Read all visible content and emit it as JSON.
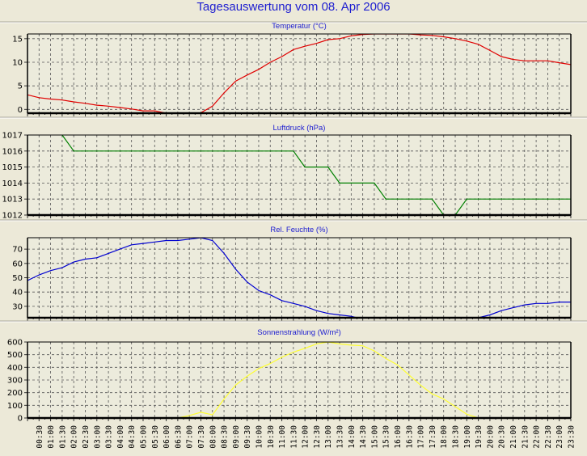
{
  "title": "Tagesauswertung vom 08. Apr 2006",
  "x_tick_labels": [
    "00:30",
    "01:00",
    "01:30",
    "02:00",
    "02:30",
    "03:00",
    "03:30",
    "04:00",
    "04:30",
    "05:00",
    "05:30",
    "06:00",
    "06:30",
    "07:00",
    "07:30",
    "08:00",
    "08:30",
    "09:00",
    "09:30",
    "10:00",
    "10:30",
    "11:00",
    "11:30",
    "12:00",
    "12:30",
    "13:00",
    "13:30",
    "14:00",
    "14:30",
    "15:00",
    "15:30",
    "16:00",
    "16:30",
    "17:00",
    "17:30",
    "18:00",
    "18:30",
    "19:00",
    "19:30",
    "20:00",
    "20:30",
    "21:00",
    "21:30",
    "22:00",
    "22:30",
    "23:00",
    "23:30"
  ],
  "chart_data": [
    {
      "type": "line",
      "title": "Temperatur (°C)",
      "color": "#e00000",
      "x": [
        "00:00",
        "00:30",
        "01:00",
        "01:30",
        "02:00",
        "02:30",
        "03:00",
        "03:30",
        "04:00",
        "04:30",
        "05:00",
        "05:30",
        "06:00",
        "06:30",
        "07:00",
        "07:30",
        "08:00",
        "08:30",
        "09:00",
        "09:30",
        "10:00",
        "10:30",
        "11:00",
        "11:30",
        "12:00",
        "12:30",
        "13:00",
        "13:30",
        "14:00",
        "14:30",
        "15:00",
        "15:30",
        "16:00",
        "16:30",
        "17:00",
        "17:30",
        "18:00",
        "18:30",
        "19:00",
        "19:30",
        "20:00",
        "20:30",
        "21:00",
        "21:30",
        "22:00",
        "22:30",
        "23:00",
        "23:30"
      ],
      "values": [
        3.1,
        2.5,
        2.2,
        2.0,
        1.6,
        1.3,
        0.9,
        0.7,
        0.4,
        0.1,
        -0.3,
        -0.3,
        -0.8,
        -1.3,
        -1.3,
        -0.7,
        0.7,
        3.5,
        6.0,
        7.3,
        8.5,
        10.0,
        11.2,
        12.7,
        13.4,
        14.0,
        14.8,
        15.0,
        15.6,
        15.9,
        16.0,
        16.0,
        16.0,
        16.0,
        15.8,
        15.7,
        15.4,
        15.0,
        14.5,
        13.8,
        12.5,
        11.2,
        10.6,
        10.3,
        10.3,
        10.3,
        9.9,
        9.5
      ],
      "ylim": [
        -0.8,
        16
      ],
      "yticks": [
        0,
        5,
        10,
        15
      ],
      "grid": true
    },
    {
      "type": "line",
      "title": "Luftdruck (hPa)",
      "color": "#008000",
      "x": [
        "00:00",
        "00:30",
        "01:00",
        "01:30",
        "02:00",
        "02:30",
        "03:00",
        "03:30",
        "04:00",
        "04:30",
        "05:00",
        "05:30",
        "06:00",
        "06:30",
        "07:00",
        "07:30",
        "08:00",
        "08:30",
        "09:00",
        "09:30",
        "10:00",
        "10:30",
        "11:00",
        "11:30",
        "12:00",
        "12:30",
        "13:00",
        "13:30",
        "14:00",
        "14:30",
        "15:00",
        "15:30",
        "16:00",
        "16:30",
        "17:00",
        "17:30",
        "18:00",
        "18:30",
        "19:00",
        "19:30",
        "20:00",
        "20:30",
        "21:00",
        "21:30",
        "22:00",
        "22:30",
        "23:00",
        "23:30"
      ],
      "values": [
        1017.5,
        1017.5,
        1017.5,
        1017,
        1016,
        1016,
        1016,
        1016,
        1016,
        1016,
        1016,
        1016,
        1016,
        1016,
        1016,
        1016,
        1016,
        1016,
        1016,
        1016,
        1016,
        1016,
        1016,
        1016,
        1015,
        1015,
        1015,
        1014,
        1014,
        1014,
        1014,
        1013,
        1013,
        1013,
        1013,
        1013,
        1012,
        1012,
        1013,
        1013,
        1013,
        1013,
        1013,
        1013,
        1013,
        1013,
        1013,
        1013
      ],
      "ylim": [
        1012,
        1017
      ],
      "yticks": [
        1012,
        1013,
        1014,
        1015,
        1016,
        1017
      ],
      "grid": true
    },
    {
      "type": "line",
      "title": "Rel. Feuchte (%)",
      "color": "#0000d0",
      "x": [
        "00:00",
        "00:30",
        "01:00",
        "01:30",
        "02:00",
        "02:30",
        "03:00",
        "03:30",
        "04:00",
        "04:30",
        "05:00",
        "05:30",
        "06:00",
        "06:30",
        "07:00",
        "07:30",
        "08:00",
        "08:30",
        "09:00",
        "09:30",
        "10:00",
        "10:30",
        "11:00",
        "11:30",
        "12:00",
        "12:30",
        "13:00",
        "13:30",
        "14:00",
        "14:30",
        "15:00",
        "15:30",
        "16:00",
        "16:30",
        "17:00",
        "17:30",
        "18:00",
        "18:30",
        "19:00",
        "19:30",
        "20:00",
        "20:30",
        "21:00",
        "21:30",
        "22:00",
        "22:30",
        "23:00",
        "23:30"
      ],
      "values": [
        48,
        52,
        55,
        57,
        61,
        63,
        64,
        67,
        70,
        73,
        74,
        75,
        76,
        76,
        77,
        78,
        76,
        67,
        56,
        47,
        41,
        38,
        34,
        32,
        30,
        27,
        25,
        24,
        23,
        21,
        20,
        20,
        20,
        20,
        20,
        22,
        22,
        21,
        21,
        22,
        24,
        27,
        29,
        31,
        32,
        32,
        33,
        33
      ],
      "ylim": [
        22,
        78
      ],
      "yticks": [
        30,
        40,
        50,
        60,
        70
      ],
      "grid": true
    },
    {
      "type": "line",
      "title": "Sonnenstrahlung (W/m²)",
      "color": "#ffff30",
      "x": [
        "00:00",
        "00:30",
        "01:00",
        "01:30",
        "02:00",
        "02:30",
        "03:00",
        "03:30",
        "04:00",
        "04:30",
        "05:00",
        "05:30",
        "06:00",
        "06:30",
        "07:00",
        "07:30",
        "08:00",
        "08:30",
        "09:00",
        "09:30",
        "10:00",
        "10:30",
        "11:00",
        "11:30",
        "12:00",
        "12:30",
        "13:00",
        "13:30",
        "14:00",
        "14:30",
        "15:00",
        "15:30",
        "16:00",
        "16:30",
        "17:00",
        "17:30",
        "18:00",
        "18:30",
        "19:00",
        "19:30",
        "20:00",
        "20:30",
        "21:00",
        "21:30",
        "22:00",
        "22:30",
        "23:00",
        "23:30"
      ],
      "values": [
        0,
        0,
        0,
        0,
        0,
        0,
        0,
        0,
        0,
        0,
        0,
        0,
        0,
        0,
        20,
        45,
        25,
        150,
        260,
        330,
        390,
        430,
        480,
        520,
        550,
        585,
        600,
        585,
        575,
        570,
        530,
        470,
        420,
        340,
        260,
        190,
        150,
        90,
        30,
        0,
        0,
        0,
        0,
        0,
        0,
        0,
        0,
        0
      ],
      "ylim": [
        0,
        600
      ],
      "yticks": [
        0,
        100,
        200,
        300,
        400,
        500,
        600
      ],
      "grid": true
    }
  ]
}
